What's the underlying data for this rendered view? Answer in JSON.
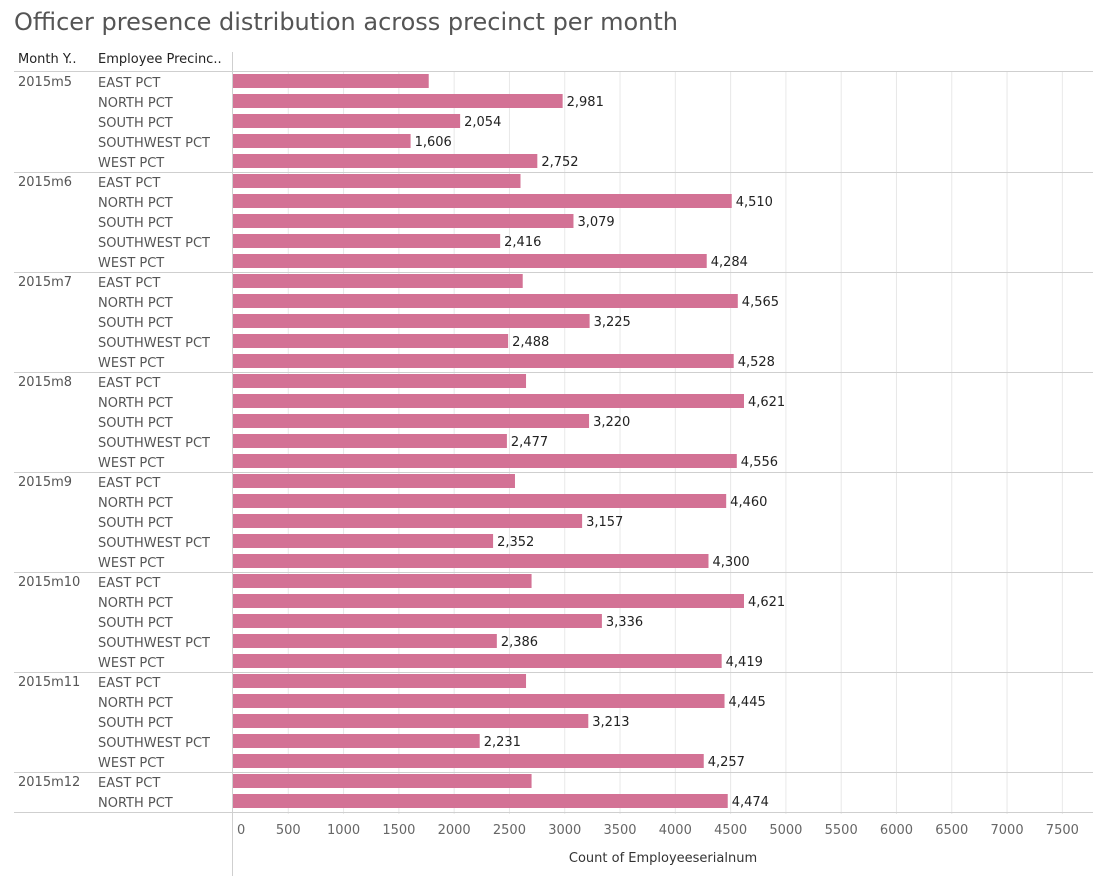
{
  "title": "Officer presence distribution across precinct per month",
  "headers": {
    "month": "Month Y..",
    "precinct": "Employee Precinc.."
  },
  "colors": {
    "bar": "#d37295",
    "grid": "#e8e8e8",
    "divider": "#cfcfcf"
  },
  "chart_data": {
    "type": "bar",
    "orientation": "horizontal",
    "xlabel": "Count of Employeeserialnum",
    "xlim": [
      0,
      7700
    ],
    "xticks": [
      "0",
      "500",
      "1000",
      "1500",
      "2000",
      "2500",
      "3000",
      "3500",
      "4000",
      "4500",
      "5000",
      "5500",
      "6000",
      "6500",
      "7000",
      "7500"
    ],
    "grid": true,
    "groups": [
      {
        "month": "2015m5",
        "rows": [
          {
            "precinct": "EAST PCT",
            "value": 1770,
            "label": ""
          },
          {
            "precinct": "NORTH PCT",
            "value": 2981,
            "label": "2,981"
          },
          {
            "precinct": "SOUTH PCT",
            "value": 2054,
            "label": "2,054"
          },
          {
            "precinct": "SOUTHWEST PCT",
            "value": 1606,
            "label": "1,606"
          },
          {
            "precinct": "WEST PCT",
            "value": 2752,
            "label": "2,752"
          }
        ]
      },
      {
        "month": "2015m6",
        "rows": [
          {
            "precinct": "EAST PCT",
            "value": 2600,
            "label": ""
          },
          {
            "precinct": "NORTH PCT",
            "value": 4510,
            "label": "4,510"
          },
          {
            "precinct": "SOUTH PCT",
            "value": 3079,
            "label": "3,079"
          },
          {
            "precinct": "SOUTHWEST PCT",
            "value": 2416,
            "label": "2,416"
          },
          {
            "precinct": "WEST PCT",
            "value": 4284,
            "label": "4,284"
          }
        ]
      },
      {
        "month": "2015m7",
        "rows": [
          {
            "precinct": "EAST PCT",
            "value": 2620,
            "label": ""
          },
          {
            "precinct": "NORTH PCT",
            "value": 4565,
            "label": "4,565"
          },
          {
            "precinct": "SOUTH PCT",
            "value": 3225,
            "label": "3,225"
          },
          {
            "precinct": "SOUTHWEST PCT",
            "value": 2488,
            "label": "2,488"
          },
          {
            "precinct": "WEST PCT",
            "value": 4528,
            "label": "4,528"
          }
        ]
      },
      {
        "month": "2015m8",
        "rows": [
          {
            "precinct": "EAST PCT",
            "value": 2650,
            "label": ""
          },
          {
            "precinct": "NORTH PCT",
            "value": 4621,
            "label": "4,621"
          },
          {
            "precinct": "SOUTH PCT",
            "value": 3220,
            "label": "3,220"
          },
          {
            "precinct": "SOUTHWEST PCT",
            "value": 2477,
            "label": "2,477"
          },
          {
            "precinct": "WEST PCT",
            "value": 4556,
            "label": "4,556"
          }
        ]
      },
      {
        "month": "2015m9",
        "rows": [
          {
            "precinct": "EAST PCT",
            "value": 2550,
            "label": ""
          },
          {
            "precinct": "NORTH PCT",
            "value": 4460,
            "label": "4,460"
          },
          {
            "precinct": "SOUTH PCT",
            "value": 3157,
            "label": "3,157"
          },
          {
            "precinct": "SOUTHWEST PCT",
            "value": 2352,
            "label": "2,352"
          },
          {
            "precinct": "WEST PCT",
            "value": 4300,
            "label": "4,300"
          }
        ]
      },
      {
        "month": "2015m10",
        "rows": [
          {
            "precinct": "EAST PCT",
            "value": 2700,
            "label": ""
          },
          {
            "precinct": "NORTH PCT",
            "value": 4621,
            "label": "4,621"
          },
          {
            "precinct": "SOUTH PCT",
            "value": 3336,
            "label": "3,336"
          },
          {
            "precinct": "SOUTHWEST PCT",
            "value": 2386,
            "label": "2,386"
          },
          {
            "precinct": "WEST PCT",
            "value": 4419,
            "label": "4,419"
          }
        ]
      },
      {
        "month": "2015m11",
        "rows": [
          {
            "precinct": "EAST PCT",
            "value": 2650,
            "label": ""
          },
          {
            "precinct": "NORTH PCT",
            "value": 4445,
            "label": "4,445"
          },
          {
            "precinct": "SOUTH PCT",
            "value": 3213,
            "label": "3,213"
          },
          {
            "precinct": "SOUTHWEST PCT",
            "value": 2231,
            "label": "2,231"
          },
          {
            "precinct": "WEST PCT",
            "value": 4257,
            "label": "4,257"
          }
        ]
      },
      {
        "month": "2015m12",
        "rows": [
          {
            "precinct": "EAST PCT",
            "value": 2700,
            "label": ""
          },
          {
            "precinct": "NORTH PCT",
            "value": 4474,
            "label": "4,474"
          }
        ]
      }
    ]
  }
}
